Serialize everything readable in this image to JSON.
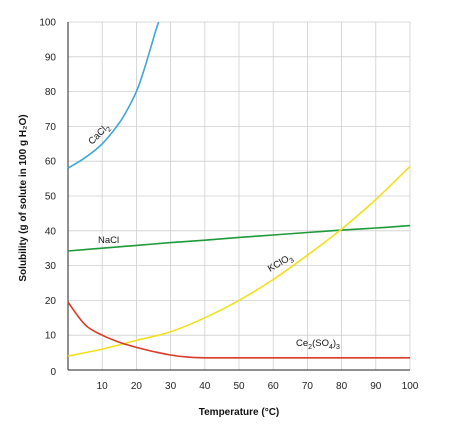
{
  "chart_data": {
    "type": "line",
    "title": "",
    "xlabel": "Temperature (°C)",
    "ylabel": "Solubility (g of solute in 100 g H₂O)",
    "xlim": [
      0,
      100
    ],
    "ylim": [
      0,
      100
    ],
    "x_ticks": [
      10,
      20,
      30,
      40,
      50,
      60,
      70,
      80,
      90,
      100
    ],
    "y_ticks": [
      0,
      10,
      20,
      30,
      40,
      50,
      60,
      70,
      80,
      90,
      100
    ],
    "grid": true,
    "series": [
      {
        "name": "CaCl₂",
        "color": "#3fa6d6",
        "x": [
          0,
          5,
          10,
          15,
          18,
          20,
          22,
          24,
          25.5,
          26.5
        ],
        "y": [
          58,
          61,
          65,
          71,
          76,
          80,
          85.5,
          92,
          97,
          100
        ]
      },
      {
        "name": "NaCl",
        "color": "#1e9a3a",
        "x": [
          0,
          10,
          20,
          30,
          40,
          50,
          60,
          70,
          80,
          90,
          100
        ],
        "y": [
          34.2,
          35,
          35.8,
          36.6,
          37.3,
          38.1,
          38.8,
          39.5,
          40.2,
          40.8,
          41.5
        ]
      },
      {
        "name": "KClO₃",
        "color": "#f2e01c",
        "x": [
          0,
          10,
          20,
          30,
          40,
          50,
          60,
          70,
          80,
          90,
          100
        ],
        "y": [
          4,
          6,
          8.5,
          11,
          15,
          20,
          26,
          33,
          40.5,
          49,
          58.5
        ]
      },
      {
        "name": "Ce₂(SO₄)₃",
        "color": "#d83a2a",
        "x": [
          0,
          5,
          10,
          15,
          20,
          25,
          30,
          35,
          40,
          50,
          60,
          70,
          80,
          90,
          100
        ],
        "y": [
          19.5,
          13,
          10,
          8,
          6.5,
          5.3,
          4.3,
          3.7,
          3.5,
          3.5,
          3.5,
          3.5,
          3.5,
          3.5,
          3.5
        ]
      }
    ],
    "labels": {
      "cacl2": {
        "base": "CaCl",
        "sub": "2"
      },
      "nacl": {
        "text": "NaCl"
      },
      "kclo3": {
        "base": "KClO",
        "sub": "3"
      },
      "ce2so43": {
        "p1": "Ce",
        "s1": "2",
        "p2": "(SO",
        "s2": "4",
        "p3": ")",
        "s3": "3"
      }
    }
  }
}
